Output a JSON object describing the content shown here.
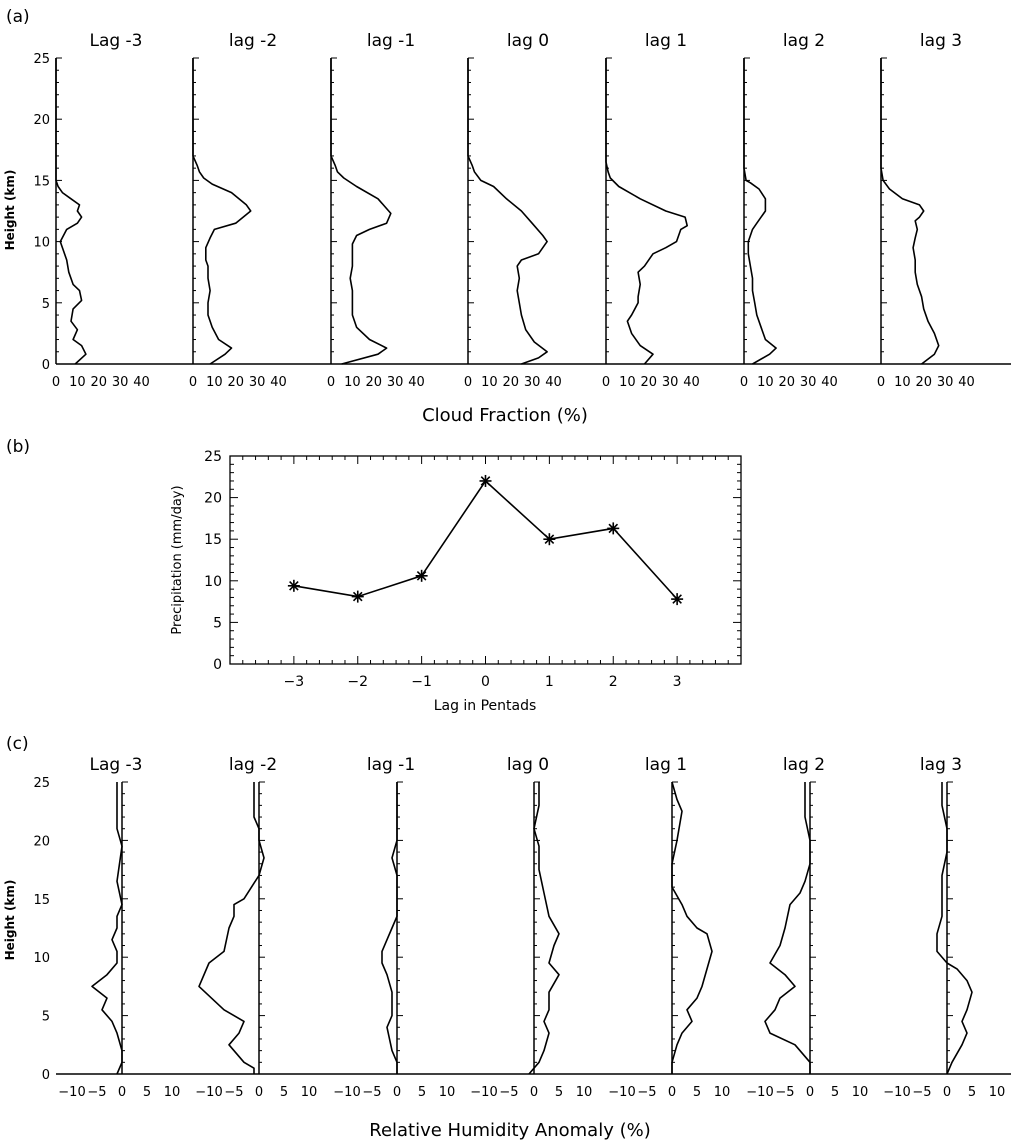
{
  "panel_labels": [
    "(a)",
    "(b)",
    "(c)"
  ],
  "chart_data": [
    {
      "type": "line",
      "panel": "(a)",
      "xlabel": "Cloud Fraction (%)",
      "ylabel": "Height (km)",
      "xlim": [
        0,
        50
      ],
      "ylim": [
        0,
        25
      ],
      "xticks": [
        "0",
        "10",
        "20",
        "30",
        "40"
      ],
      "yticks": [
        "0",
        "5",
        "10",
        "15",
        "20",
        "25"
      ],
      "series": [
        {
          "name": "Lag -3",
          "x": [
            9,
            14,
            12,
            8,
            10,
            7,
            8,
            12,
            11,
            8,
            6,
            5,
            2,
            5,
            10,
            12,
            10,
            11,
            7,
            3,
            1,
            0,
            0,
            0
          ],
          "y": [
            0.0,
            0.8,
            1.5,
            2.0,
            2.8,
            3.5,
            4.5,
            5.2,
            6.0,
            6.5,
            7.5,
            8.5,
            10.0,
            11.0,
            11.5,
            12.0,
            12.5,
            13.0,
            13.5,
            14.0,
            14.5,
            15.0,
            20.0,
            25.0
          ]
        },
        {
          "name": "lag -2",
          "x": [
            8,
            15,
            18,
            12,
            9,
            7,
            7,
            8,
            7,
            7,
            6,
            6,
            8,
            10,
            20,
            27,
            25,
            18,
            9,
            5,
            3,
            2,
            0,
            0
          ],
          "y": [
            0.0,
            0.8,
            1.3,
            2.0,
            3.0,
            4.0,
            5.0,
            6.0,
            7.0,
            8.0,
            8.5,
            9.5,
            10.3,
            11.0,
            11.5,
            12.5,
            13.0,
            14.0,
            14.7,
            15.2,
            15.7,
            16.2,
            17.0,
            25.0
          ]
        },
        {
          "name": "lag -1",
          "x": [
            5,
            22,
            26,
            18,
            12,
            10,
            10,
            10,
            9,
            10,
            10,
            10,
            12,
            18,
            26,
            28,
            22,
            12,
            6,
            3,
            2,
            0,
            0
          ],
          "y": [
            0.0,
            0.8,
            1.3,
            2.0,
            3.0,
            4.0,
            5.0,
            6.0,
            7.0,
            8.0,
            9.0,
            9.8,
            10.5,
            11.0,
            11.5,
            12.3,
            13.5,
            14.5,
            15.2,
            15.7,
            16.2,
            17.0,
            25.0
          ]
        },
        {
          "name": "lag 0",
          "x": [
            25,
            33,
            37,
            31,
            27,
            25,
            24,
            23,
            24,
            23,
            25,
            33,
            37,
            35,
            30,
            25,
            18,
            12,
            6,
            3,
            2,
            0,
            0
          ],
          "y": [
            0.0,
            0.5,
            1.0,
            1.8,
            2.8,
            4.0,
            5.0,
            6.0,
            7.0,
            8.0,
            8.5,
            9.0,
            10.0,
            10.5,
            11.5,
            12.5,
            13.5,
            14.5,
            15.0,
            15.7,
            16.2,
            17.0,
            25.0
          ]
        },
        {
          "name": "lag 1",
          "x": [
            18,
            22,
            16,
            12,
            10,
            12,
            15,
            15,
            16,
            15,
            18,
            22,
            28,
            33,
            35,
            38,
            37,
            28,
            16,
            6,
            2,
            1,
            0,
            0
          ],
          "y": [
            0.0,
            0.8,
            1.5,
            2.5,
            3.5,
            4.0,
            5.0,
            5.5,
            6.5,
            7.5,
            8.0,
            9.0,
            9.5,
            10.0,
            11.0,
            11.3,
            12.0,
            12.5,
            13.5,
            14.5,
            15.2,
            15.7,
            16.5,
            25.0
          ]
        },
        {
          "name": "lag 2",
          "x": [
            4,
            12,
            15,
            10,
            8,
            6,
            5,
            4,
            4,
            3,
            2,
            2,
            4,
            6,
            8,
            10,
            10,
            7,
            3,
            1,
            0,
            0
          ],
          "y": [
            0.0,
            0.8,
            1.3,
            2.0,
            3.0,
            4.0,
            5.0,
            6.0,
            7.0,
            8.0,
            9.0,
            10.0,
            11.0,
            11.5,
            12.0,
            12.5,
            13.5,
            14.3,
            14.8,
            15.0,
            16.0,
            25.0
          ]
        },
        {
          "name": "lag 3",
          "x": [
            19,
            25,
            27,
            25,
            22,
            20,
            19,
            17,
            16,
            16,
            15,
            16,
            17,
            16,
            18,
            20,
            18,
            10,
            4,
            1,
            0,
            0
          ],
          "y": [
            0.0,
            0.8,
            1.5,
            2.5,
            3.5,
            4.5,
            5.5,
            6.5,
            7.5,
            8.5,
            9.5,
            10.3,
            11.0,
            11.7,
            12.0,
            12.5,
            13.0,
            13.5,
            14.3,
            15.0,
            16.0,
            25.0
          ]
        }
      ]
    },
    {
      "type": "line",
      "panel": "(b)",
      "xlabel": "Lag in Pentads",
      "ylabel": "Precipitation (mm/day)",
      "xlim": [
        -4,
        4
      ],
      "ylim": [
        0,
        25
      ],
      "xticks": [
        "-3",
        "-2",
        "-1",
        "0",
        "1",
        "2",
        "3"
      ],
      "yticks": [
        "0",
        "5",
        "10",
        "15",
        "20",
        "25"
      ],
      "x": [
        -3,
        -2,
        -1,
        0,
        1,
        2,
        3
      ],
      "values": [
        9.4,
        8.1,
        10.6,
        22.0,
        15.0,
        16.3,
        7.8
      ],
      "marker": "asterisk"
    },
    {
      "type": "line",
      "panel": "(c)",
      "xlabel": "Relative Humidity Anomaly (%)",
      "ylabel": "Height (km)",
      "xlim": [
        -15,
        15
      ],
      "ylim": [
        0,
        25
      ],
      "xticks": [
        "-10",
        "-5",
        "0",
        "5",
        "10"
      ],
      "yticks": [
        "0",
        "5",
        "10",
        "15",
        "20",
        "25"
      ],
      "series": [
        {
          "name": "Lag -3",
          "x": [
            -1,
            0,
            0,
            -1,
            -2,
            -4,
            -3,
            -6,
            -3,
            -1,
            -1,
            -2,
            -1,
            -1,
            0,
            -1,
            0,
            -1,
            -1
          ],
          "y": [
            0.0,
            1.0,
            2.0,
            3.5,
            4.5,
            5.5,
            6.5,
            7.5,
            8.5,
            9.5,
            10.5,
            11.5,
            12.5,
            13.5,
            14.5,
            16.5,
            19.5,
            21.0,
            25.0
          ]
        },
        {
          "name": "lag -2",
          "x": [
            -1,
            -1,
            -3,
            -6,
            -4,
            -3,
            -7,
            -12,
            -10,
            -7,
            -6,
            -5,
            -5,
            -3,
            0,
            1,
            0,
            0,
            -1,
            -1
          ],
          "y": [
            0.0,
            0.5,
            1.0,
            2.5,
            3.5,
            4.5,
            5.5,
            7.5,
            9.5,
            10.5,
            12.5,
            13.5,
            14.5,
            15.0,
            17.0,
            18.5,
            20.0,
            21.0,
            22.0,
            25.0
          ]
        },
        {
          "name": "lag -1",
          "x": [
            0,
            0,
            -1,
            -2,
            -1,
            -1,
            -2,
            -3,
            -3,
            -2,
            -1,
            0,
            0,
            0,
            -1,
            0,
            0,
            0
          ],
          "y": [
            0.0,
            1.0,
            2.0,
            4.0,
            5.0,
            7.0,
            8.5,
            9.5,
            10.5,
            11.5,
            12.5,
            13.5,
            15.0,
            17.0,
            18.5,
            20.0,
            21.5,
            25.0
          ]
        },
        {
          "name": "lag 0",
          "x": [
            -1,
            1,
            2,
            3,
            2,
            3,
            3,
            5,
            3,
            4,
            5,
            3,
            2,
            1,
            1,
            0,
            1,
            1
          ],
          "y": [
            0.0,
            1.0,
            2.0,
            3.5,
            4.5,
            5.5,
            7.0,
            8.5,
            9.5,
            11.0,
            12.0,
            13.5,
            15.5,
            17.5,
            19.5,
            21.0,
            23.0,
            25.0
          ]
        },
        {
          "name": "lag 1",
          "x": [
            0,
            0,
            1,
            2,
            4,
            3,
            5,
            6,
            7,
            8,
            7,
            5,
            3,
            2,
            0,
            0,
            1,
            2,
            1,
            0
          ],
          "y": [
            0.0,
            1.0,
            2.5,
            3.5,
            4.5,
            5.5,
            6.5,
            7.5,
            9.0,
            10.5,
            12.0,
            12.5,
            13.5,
            14.5,
            16.0,
            18.0,
            20.0,
            22.5,
            23.5,
            25.0
          ]
        },
        {
          "name": "lag 2",
          "x": [
            0,
            0,
            -3,
            -8,
            -9,
            -7,
            -6,
            -3,
            -5,
            -8,
            -6,
            -5,
            -4,
            -2,
            -1,
            0,
            0,
            -1,
            -1
          ],
          "y": [
            0.0,
            1.0,
            2.5,
            3.5,
            4.5,
            5.5,
            6.5,
            7.5,
            8.5,
            9.5,
            11.0,
            12.5,
            14.5,
            15.5,
            16.5,
            18.0,
            20.0,
            22.0,
            25.0
          ]
        },
        {
          "name": "lag 3",
          "x": [
            0,
            1,
            3,
            4,
            3,
            4,
            5,
            4,
            2,
            0,
            -2,
            -2,
            -1,
            -1,
            -1,
            0,
            0,
            -1,
            -1
          ],
          "y": [
            0.0,
            1.0,
            2.5,
            3.5,
            4.5,
            5.5,
            7.0,
            8.0,
            9.0,
            9.5,
            10.5,
            12.0,
            13.5,
            15.0,
            17.0,
            19.0,
            21.0,
            23.0,
            25.0
          ]
        }
      ]
    }
  ]
}
